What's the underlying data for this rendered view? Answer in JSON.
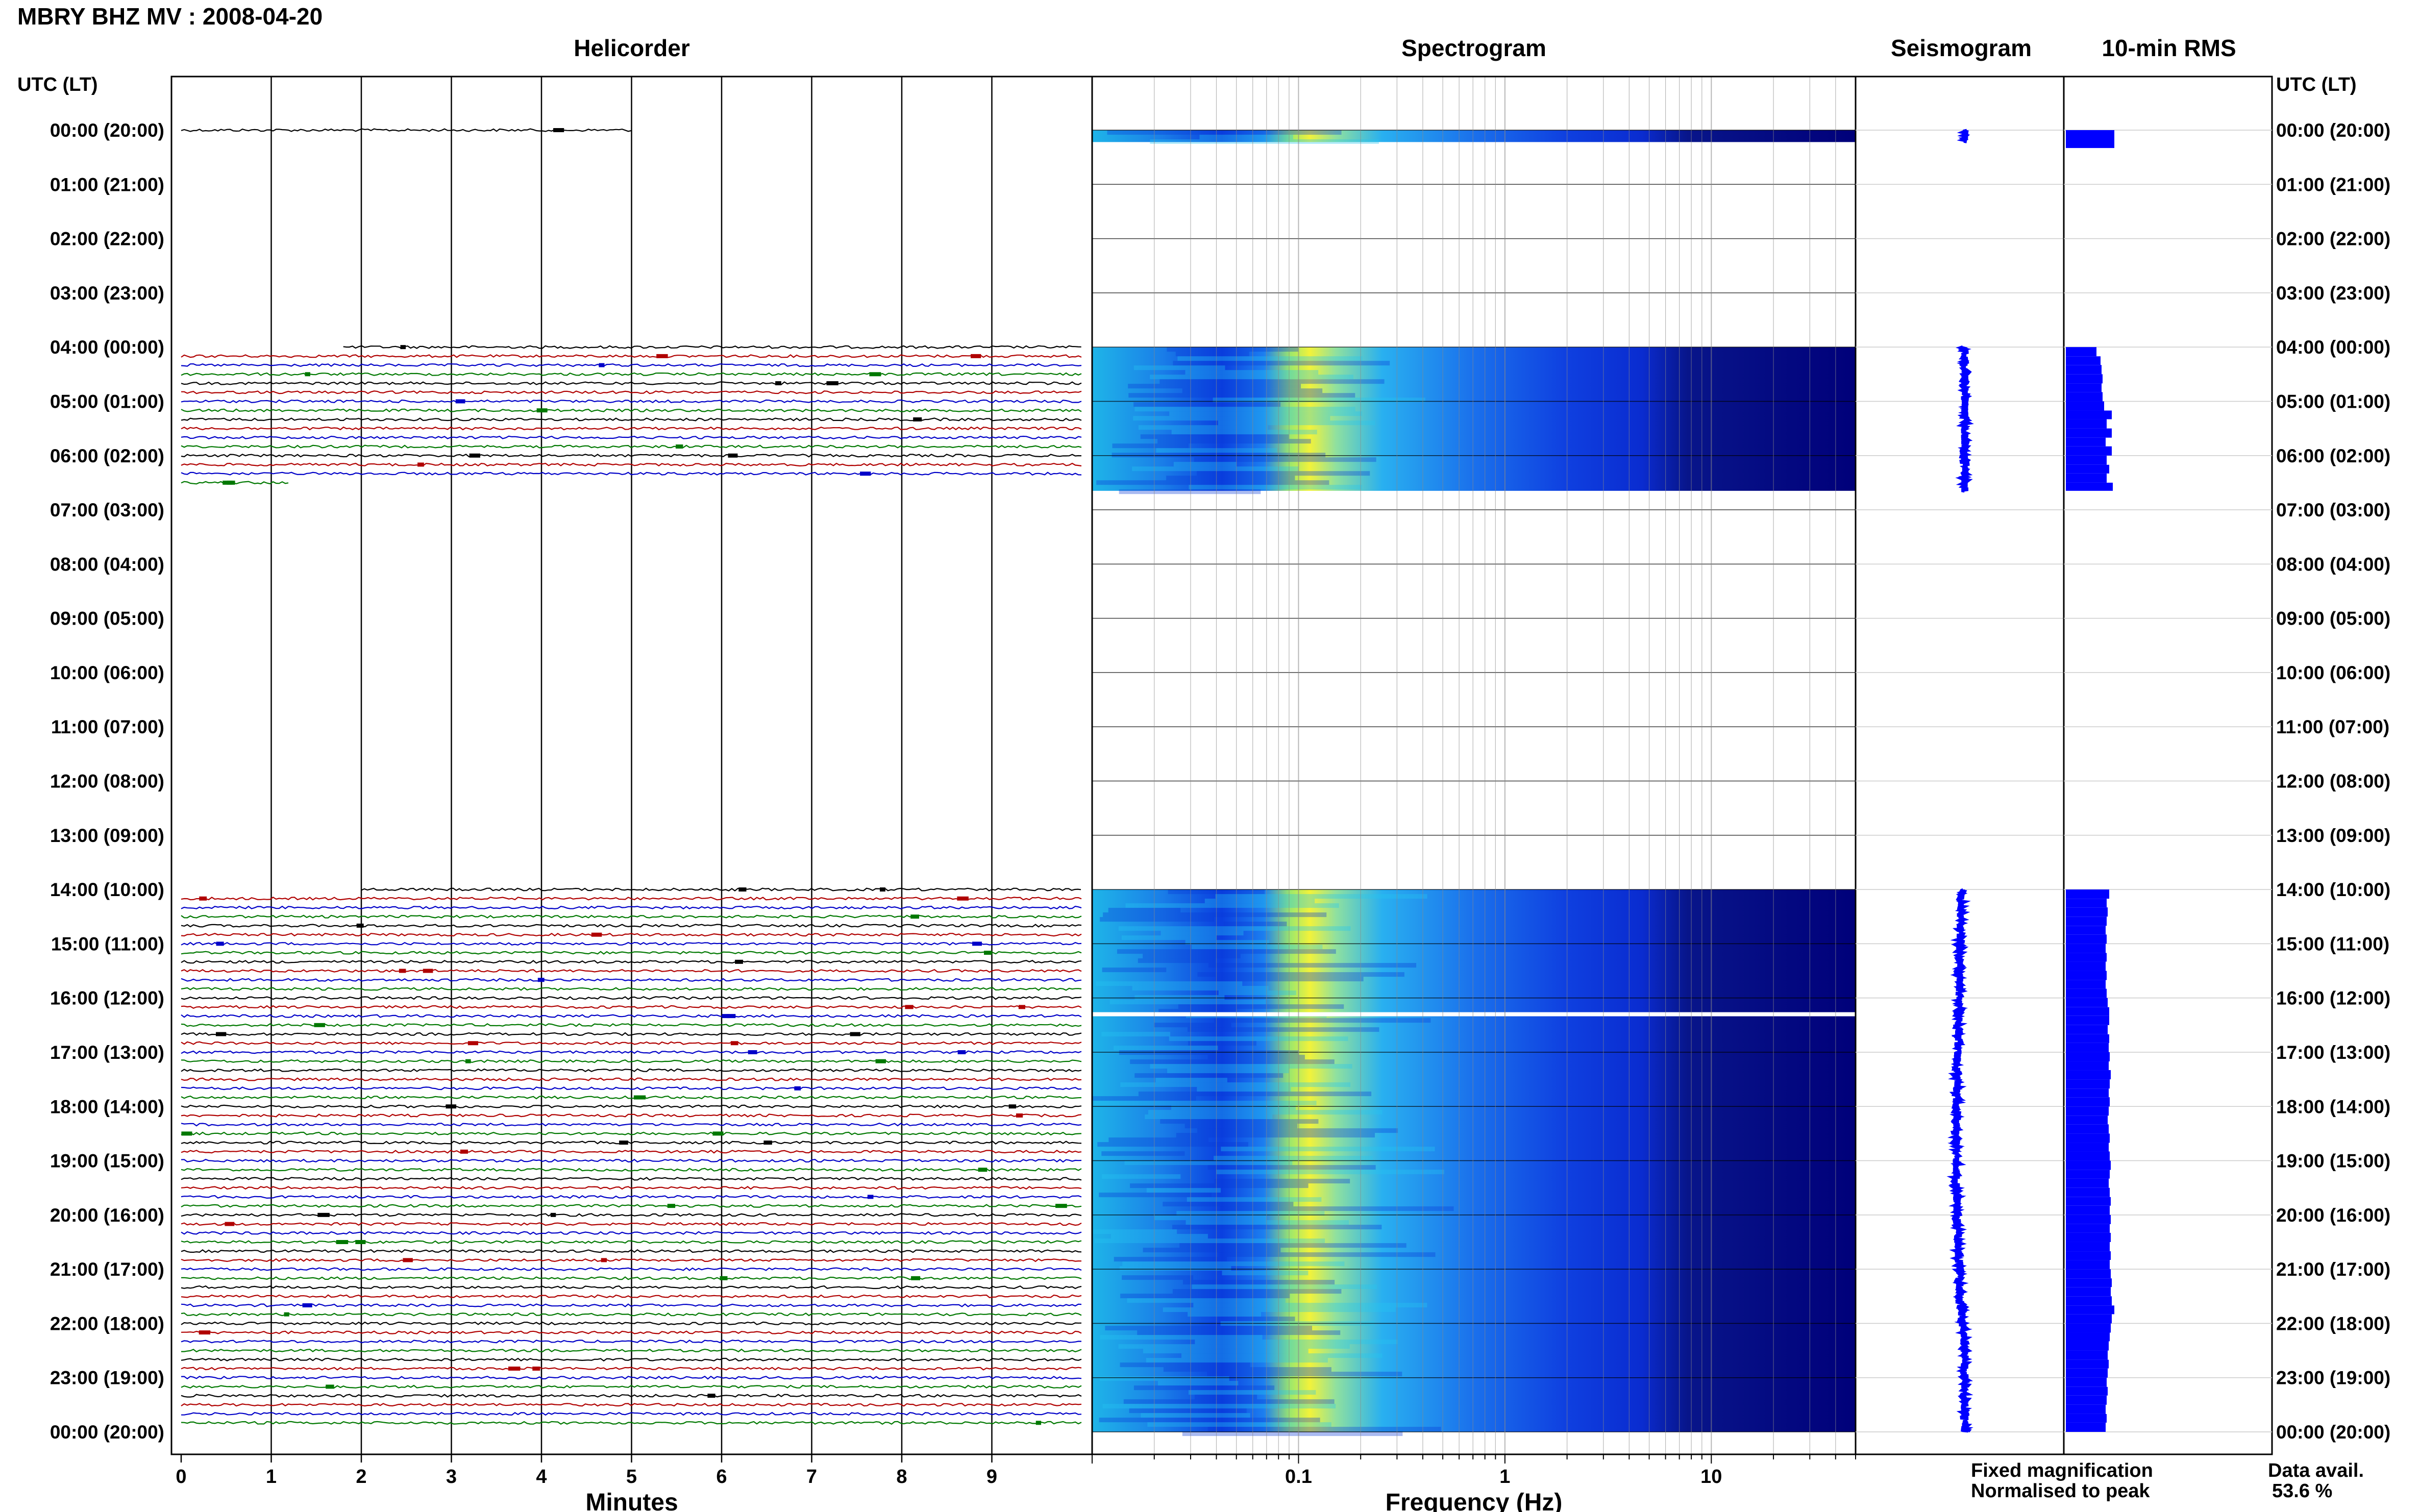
{
  "title": "MBRY BHZ MV : 2008-04-20",
  "panels": {
    "helicorder": "Helicorder",
    "spectrogram": "Spectrogram",
    "seismogram": "Seismogram",
    "rms": "10-min RMS"
  },
  "axis": {
    "left_header": "UTC (LT)",
    "right_header": "UTC (LT)",
    "minutes_label": "Minutes",
    "frequency_label": "Frequency (Hz)"
  },
  "legend": {
    "fixed": "Fixed magnification",
    "normalised": "Normalised to peak",
    "data_avail_label": "Data avail.",
    "data_avail_value": "53.6 %",
    "fixed_color": "#0000ff",
    "normalised_color": "#ff0000"
  },
  "colors": {
    "trace_cycle": [
      "#000000",
      "#b00000",
      "#0000c8",
      "#007800"
    ],
    "rms_fill": "#0000ff",
    "seismogram": "#0000ff",
    "spectrogram_low": "#00007a",
    "spectrogram_high": "#ffff40"
  },
  "chart_data": {
    "type": "heatmap",
    "hour_labels": [
      "00:00 (20:00)",
      "01:00 (21:00)",
      "02:00 (22:00)",
      "03:00 (23:00)",
      "04:00 (00:00)",
      "05:00 (01:00)",
      "06:00 (02:00)",
      "07:00 (03:00)",
      "08:00 (04:00)",
      "09:00 (05:00)",
      "10:00 (06:00)",
      "11:00 (07:00)",
      "12:00 (08:00)",
      "13:00 (09:00)",
      "14:00 (10:00)",
      "15:00 (11:00)",
      "16:00 (12:00)",
      "17:00 (13:00)",
      "18:00 (14:00)",
      "19:00 (15:00)",
      "20:00 (16:00)",
      "21:00 (17:00)",
      "22:00 (18:00)",
      "23:00 (19:00)",
      "00:00 (20:00)"
    ],
    "minute_ticks": [
      "0",
      "1",
      "2",
      "3",
      "4",
      "5",
      "6",
      "7",
      "8",
      "9"
    ],
    "minute_range": [
      0,
      10
    ],
    "frequency_ticks": [
      {
        "value": 0.1,
        "label": "0.1"
      },
      {
        "value": 1,
        "label": "1"
      },
      {
        "value": 10,
        "label": "10"
      }
    ],
    "frequency_range": [
      0.01,
      50
    ],
    "frequency_scale": "log",
    "hours_range": [
      0,
      24
    ],
    "data_segments_hours": [
      [
        0.0,
        0.22
      ],
      [
        4.0,
        6.65
      ],
      [
        14.0,
        24.0
      ]
    ],
    "helicorder_rows": {
      "minutes_per_row": 10,
      "first_row_start_min": [
        0,
        1.8,
        2.0
      ],
      "last_row_end_min": [
        5.0,
        1.2,
        10.0
      ]
    },
    "spectrogram_gap_hour": 16.3,
    "rms_values": [
      {
        "start": 0.0,
        "end": 0.33,
        "value": 0.95
      },
      {
        "start": 4.0,
        "end": 4.17,
        "value": 0.6
      },
      {
        "start": 4.17,
        "end": 4.33,
        "value": 0.68
      },
      {
        "start": 4.33,
        "end": 4.5,
        "value": 0.7
      },
      {
        "start": 4.5,
        "end": 4.67,
        "value": 0.72
      },
      {
        "start": 4.67,
        "end": 4.83,
        "value": 0.7
      },
      {
        "start": 4.83,
        "end": 5.0,
        "value": 0.72
      },
      {
        "start": 5.0,
        "end": 5.17,
        "value": 0.75
      },
      {
        "start": 5.17,
        "end": 5.33,
        "value": 0.9
      },
      {
        "start": 5.33,
        "end": 5.5,
        "value": 0.8
      },
      {
        "start": 5.5,
        "end": 5.67,
        "value": 0.9
      },
      {
        "start": 5.67,
        "end": 5.83,
        "value": 0.78
      },
      {
        "start": 5.83,
        "end": 6.0,
        "value": 0.9
      },
      {
        "start": 6.0,
        "end": 6.17,
        "value": 0.8
      },
      {
        "start": 6.17,
        "end": 6.33,
        "value": 0.85
      },
      {
        "start": 6.33,
        "end": 6.5,
        "value": 0.8
      },
      {
        "start": 6.5,
        "end": 6.65,
        "value": 0.92
      },
      {
        "start": 14.0,
        "end": 14.17,
        "value": 0.85
      },
      {
        "start": 14.17,
        "end": 14.33,
        "value": 0.8
      },
      {
        "start": 14.33,
        "end": 14.5,
        "value": 0.82
      },
      {
        "start": 14.5,
        "end": 14.67,
        "value": 0.8
      },
      {
        "start": 14.67,
        "end": 14.83,
        "value": 0.78
      },
      {
        "start": 14.83,
        "end": 15.0,
        "value": 0.8
      },
      {
        "start": 15.0,
        "end": 15.17,
        "value": 0.78
      },
      {
        "start": 15.17,
        "end": 15.33,
        "value": 0.8
      },
      {
        "start": 15.33,
        "end": 15.5,
        "value": 0.78
      },
      {
        "start": 15.5,
        "end": 15.67,
        "value": 0.8
      },
      {
        "start": 15.67,
        "end": 15.83,
        "value": 0.78
      },
      {
        "start": 15.83,
        "end": 16.0,
        "value": 0.8
      },
      {
        "start": 16.0,
        "end": 16.17,
        "value": 0.82
      },
      {
        "start": 16.17,
        "end": 16.33,
        "value": 0.85
      },
      {
        "start": 16.33,
        "end": 16.5,
        "value": 0.85
      },
      {
        "start": 16.5,
        "end": 16.67,
        "value": 0.82
      },
      {
        "start": 16.67,
        "end": 16.83,
        "value": 0.85
      },
      {
        "start": 16.83,
        "end": 17.0,
        "value": 0.84
      },
      {
        "start": 17.0,
        "end": 17.17,
        "value": 0.86
      },
      {
        "start": 17.17,
        "end": 17.33,
        "value": 0.84
      },
      {
        "start": 17.33,
        "end": 17.5,
        "value": 0.88
      },
      {
        "start": 17.5,
        "end": 17.67,
        "value": 0.86
      },
      {
        "start": 17.67,
        "end": 17.83,
        "value": 0.84
      },
      {
        "start": 17.83,
        "end": 18.0,
        "value": 0.86
      },
      {
        "start": 18.0,
        "end": 18.17,
        "value": 0.84
      },
      {
        "start": 18.17,
        "end": 18.33,
        "value": 0.82
      },
      {
        "start": 18.33,
        "end": 18.5,
        "value": 0.84
      },
      {
        "start": 18.5,
        "end": 18.67,
        "value": 0.86
      },
      {
        "start": 18.67,
        "end": 18.83,
        "value": 0.84
      },
      {
        "start": 18.83,
        "end": 19.0,
        "value": 0.86
      },
      {
        "start": 19.0,
        "end": 19.17,
        "value": 0.88
      },
      {
        "start": 19.17,
        "end": 19.33,
        "value": 0.86
      },
      {
        "start": 19.33,
        "end": 19.5,
        "value": 0.84
      },
      {
        "start": 19.5,
        "end": 19.67,
        "value": 0.86
      },
      {
        "start": 19.67,
        "end": 19.83,
        "value": 0.88
      },
      {
        "start": 19.83,
        "end": 20.0,
        "value": 0.86
      },
      {
        "start": 20.0,
        "end": 20.17,
        "value": 0.88
      },
      {
        "start": 20.17,
        "end": 20.33,
        "value": 0.86
      },
      {
        "start": 20.33,
        "end": 20.5,
        "value": 0.88
      },
      {
        "start": 20.5,
        "end": 20.67,
        "value": 0.86
      },
      {
        "start": 20.67,
        "end": 20.83,
        "value": 0.88
      },
      {
        "start": 20.83,
        "end": 21.0,
        "value": 0.86
      },
      {
        "start": 21.0,
        "end": 21.17,
        "value": 0.88
      },
      {
        "start": 21.17,
        "end": 21.33,
        "value": 0.9
      },
      {
        "start": 21.33,
        "end": 21.5,
        "value": 0.88
      },
      {
        "start": 21.5,
        "end": 21.67,
        "value": 0.9
      },
      {
        "start": 21.67,
        "end": 21.83,
        "value": 0.95
      },
      {
        "start": 21.83,
        "end": 22.0,
        "value": 0.9
      },
      {
        "start": 22.0,
        "end": 22.17,
        "value": 0.88
      },
      {
        "start": 22.17,
        "end": 22.33,
        "value": 0.86
      },
      {
        "start": 22.33,
        "end": 22.5,
        "value": 0.84
      },
      {
        "start": 22.5,
        "end": 22.67,
        "value": 0.82
      },
      {
        "start": 22.67,
        "end": 22.83,
        "value": 0.84
      },
      {
        "start": 22.83,
        "end": 23.0,
        "value": 0.82
      },
      {
        "start": 23.0,
        "end": 23.17,
        "value": 0.8
      },
      {
        "start": 23.17,
        "end": 23.33,
        "value": 0.82
      },
      {
        "start": 23.33,
        "end": 23.5,
        "value": 0.8
      },
      {
        "start": 23.5,
        "end": 23.67,
        "value": 0.78
      },
      {
        "start": 23.67,
        "end": 23.83,
        "value": 0.8
      },
      {
        "start": 23.83,
        "end": 24.0,
        "value": 0.78
      }
    ],
    "seismogram_path": [
      {
        "hour": 0.0,
        "offset": 0.0
      },
      {
        "hour": 0.2,
        "offset": 0.0
      },
      {
        "hour": 4.0,
        "offset": 0.0
      },
      {
        "hour": 6.6,
        "offset": 0.0
      },
      {
        "hour": 14.0,
        "offset": -0.12
      },
      {
        "hour": 16.0,
        "offset": -0.18
      },
      {
        "hour": 18.0,
        "offset": -0.28
      },
      {
        "hour": 20.0,
        "offset": -0.26
      },
      {
        "hour": 21.5,
        "offset": -0.15
      },
      {
        "hour": 22.5,
        "offset": 0.0
      },
      {
        "hour": 24.0,
        "offset": 0.0
      }
    ]
  }
}
